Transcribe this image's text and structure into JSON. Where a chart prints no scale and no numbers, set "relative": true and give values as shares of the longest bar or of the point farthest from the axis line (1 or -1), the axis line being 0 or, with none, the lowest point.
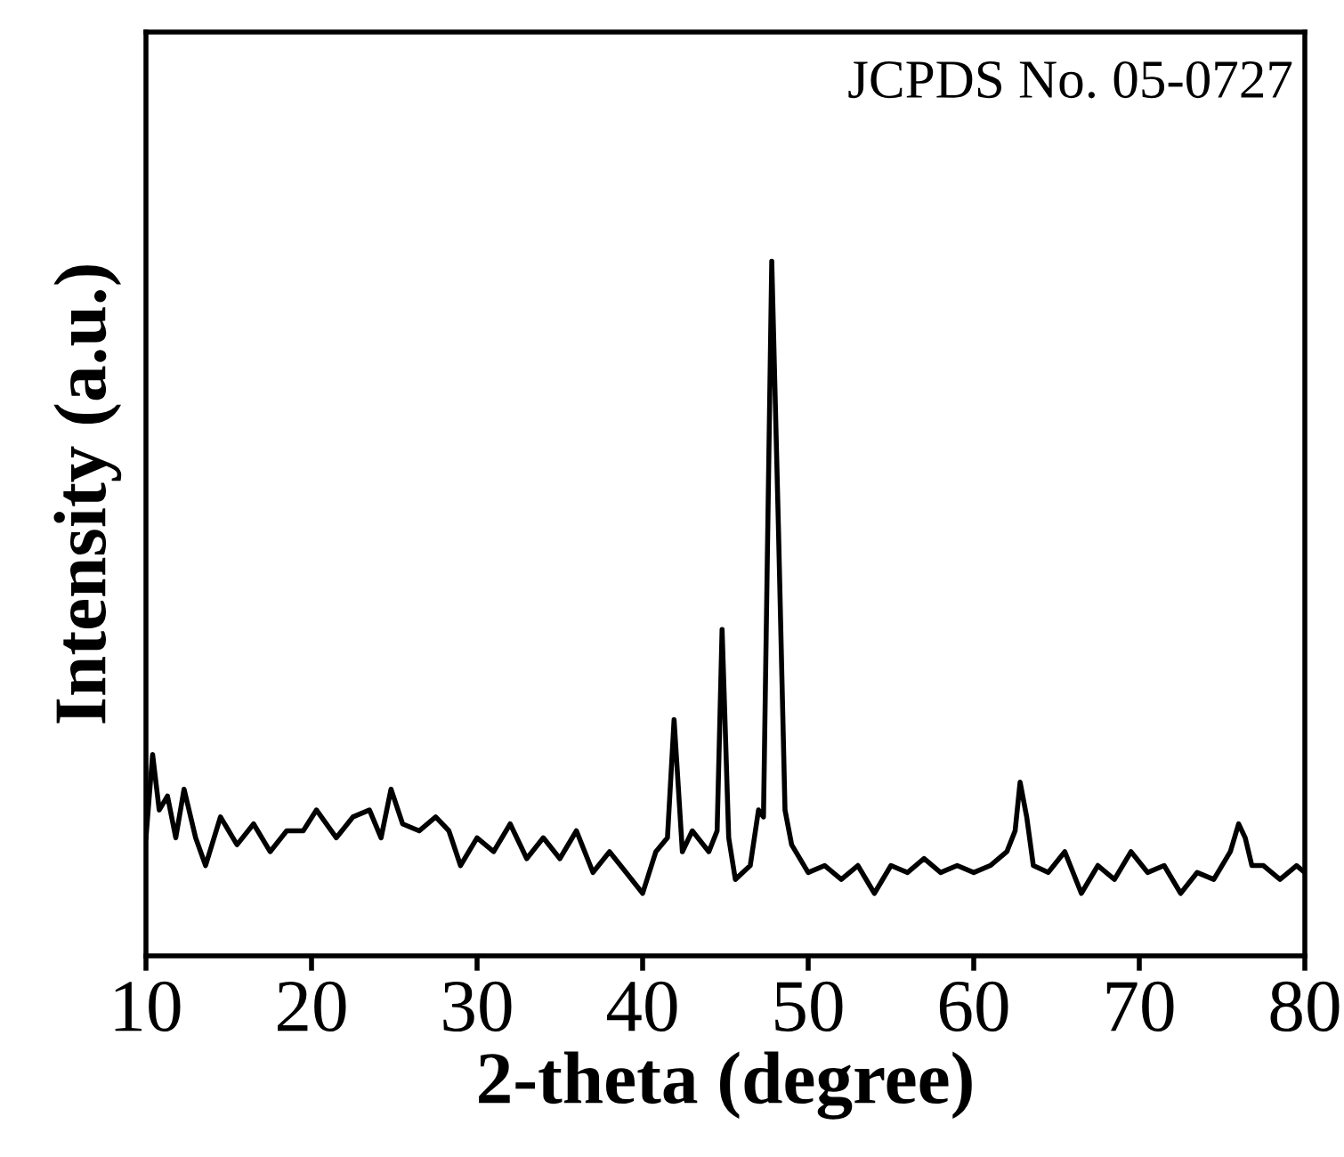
{
  "chart_data": {
    "type": "line",
    "relative": true,
    "xlabel": "2-theta (degree)",
    "ylabel": "Intensity (a.u.)",
    "xlim": [
      10,
      80
    ],
    "xticks": [
      10,
      20,
      30,
      40,
      50,
      60,
      70,
      80
    ],
    "tick_labels": "x",
    "annotations": [
      "JCPDS No. 05-0727"
    ],
    "series": [
      {
        "color": "#000000",
        "x": [
          10.0,
          10.4,
          10.8,
          11.3,
          11.8,
          12.3,
          13.0,
          13.6,
          14.5,
          15.5,
          16.5,
          17.5,
          18.5,
          19.5,
          20.3,
          21.5,
          22.5,
          23.5,
          24.2,
          24.8,
          25.5,
          26.5,
          27.5,
          28.3,
          29.0,
          30.0,
          31.0,
          32.0,
          33.0,
          34.0,
          35.0,
          36.0,
          37.0,
          38.0,
          39.0,
          40.0,
          40.8,
          41.5,
          41.9,
          42.4,
          43.0,
          44.0,
          44.5,
          44.8,
          45.2,
          45.6,
          46.5,
          47.0,
          47.3,
          47.8,
          48.2,
          48.6,
          49.0,
          50.0,
          51.0,
          52.0,
          53.0,
          54.0,
          55.0,
          56.0,
          57.0,
          58.0,
          59.0,
          60.0,
          61.0,
          62.0,
          62.5,
          62.8,
          63.2,
          63.6,
          64.5,
          65.5,
          66.5,
          67.5,
          68.5,
          69.5,
          70.5,
          71.5,
          72.5,
          73.5,
          74.5,
          75.5,
          76.0,
          76.4,
          76.8,
          77.5,
          78.5,
          79.5,
          80.0
        ],
        "values": [
          0.17,
          0.29,
          0.21,
          0.23,
          0.17,
          0.24,
          0.17,
          0.13,
          0.2,
          0.16,
          0.19,
          0.15,
          0.18,
          0.18,
          0.21,
          0.17,
          0.2,
          0.21,
          0.17,
          0.24,
          0.19,
          0.18,
          0.2,
          0.18,
          0.13,
          0.17,
          0.15,
          0.19,
          0.14,
          0.17,
          0.14,
          0.18,
          0.12,
          0.15,
          0.12,
          0.09,
          0.15,
          0.17,
          0.34,
          0.15,
          0.18,
          0.15,
          0.18,
          0.47,
          0.17,
          0.11,
          0.13,
          0.21,
          0.2,
          1,
          0.62,
          0.21,
          0.16,
          0.12,
          0.13,
          0.11,
          0.13,
          0.09,
          0.13,
          0.12,
          0.14,
          0.12,
          0.13,
          0.12,
          0.13,
          0.15,
          0.18,
          0.25,
          0.2,
          0.13,
          0.12,
          0.15,
          0.09,
          0.13,
          0.11,
          0.15,
          0.12,
          0.13,
          0.09,
          0.12,
          0.11,
          0.15,
          0.19,
          0.17,
          0.13,
          0.13,
          0.11,
          0.13,
          0.12
        ]
      }
    ]
  }
}
